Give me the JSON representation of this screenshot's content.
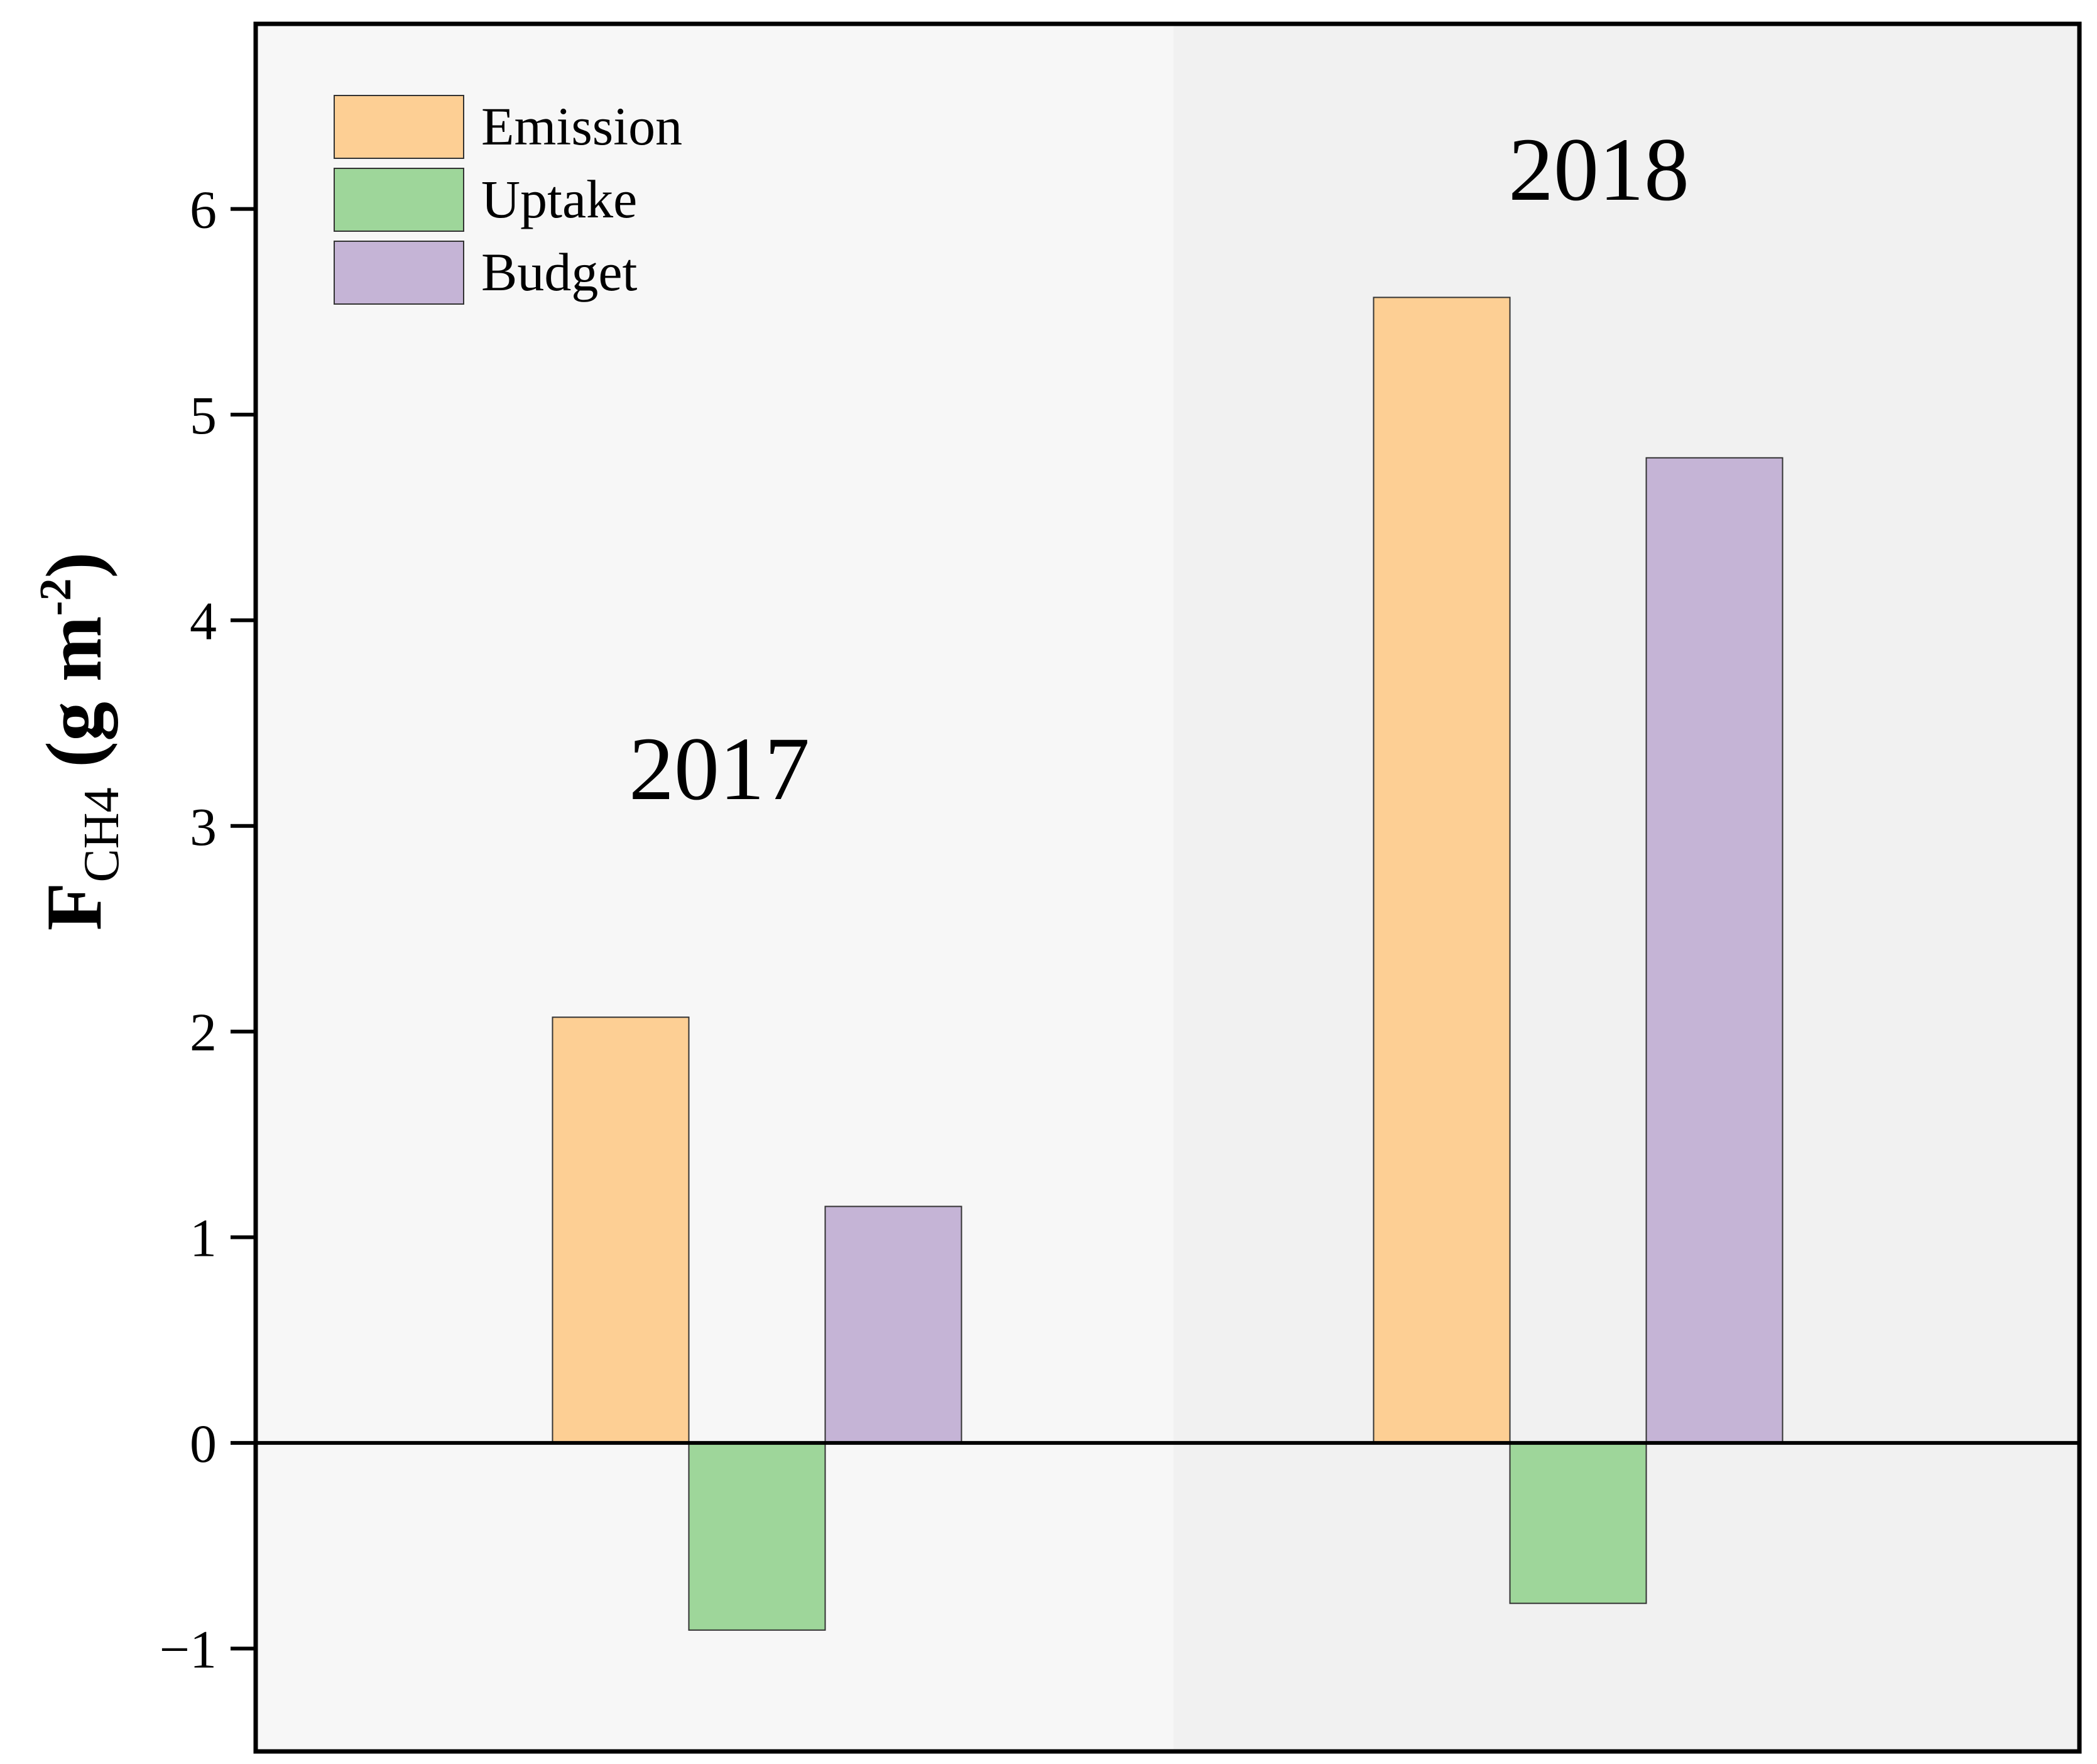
{
  "chart_data": {
    "type": "bar",
    "categories": [
      "2017",
      "2018"
    ],
    "series": [
      {
        "name": "Emission",
        "values": [
          2.07,
          5.57
        ],
        "color": "#FDCF94"
      },
      {
        "name": "Uptake",
        "values": [
          -0.91,
          -0.78
        ],
        "color": "#9ED69A"
      },
      {
        "name": "Budget",
        "values": [
          1.15,
          4.79
        ],
        "color": "#C5B4D6"
      }
    ],
    "ylabel": {
      "main": "F",
      "sub": "CH4",
      "unit_open": " (g m",
      "sup": "-2",
      "unit_close": ")"
    },
    "ylim": [
      -1.5,
      6.9
    ],
    "yticks": [
      -1,
      0,
      1,
      2,
      3,
      4,
      5,
      6
    ],
    "ytick_labels": [
      "−1",
      "0",
      "1",
      "2",
      "3",
      "4",
      "5",
      "6"
    ],
    "grid": false,
    "legend_position": "top-left",
    "panel_colors": [
      "#F7F7F7",
      "#F1F1F1"
    ],
    "zero_line": true
  }
}
